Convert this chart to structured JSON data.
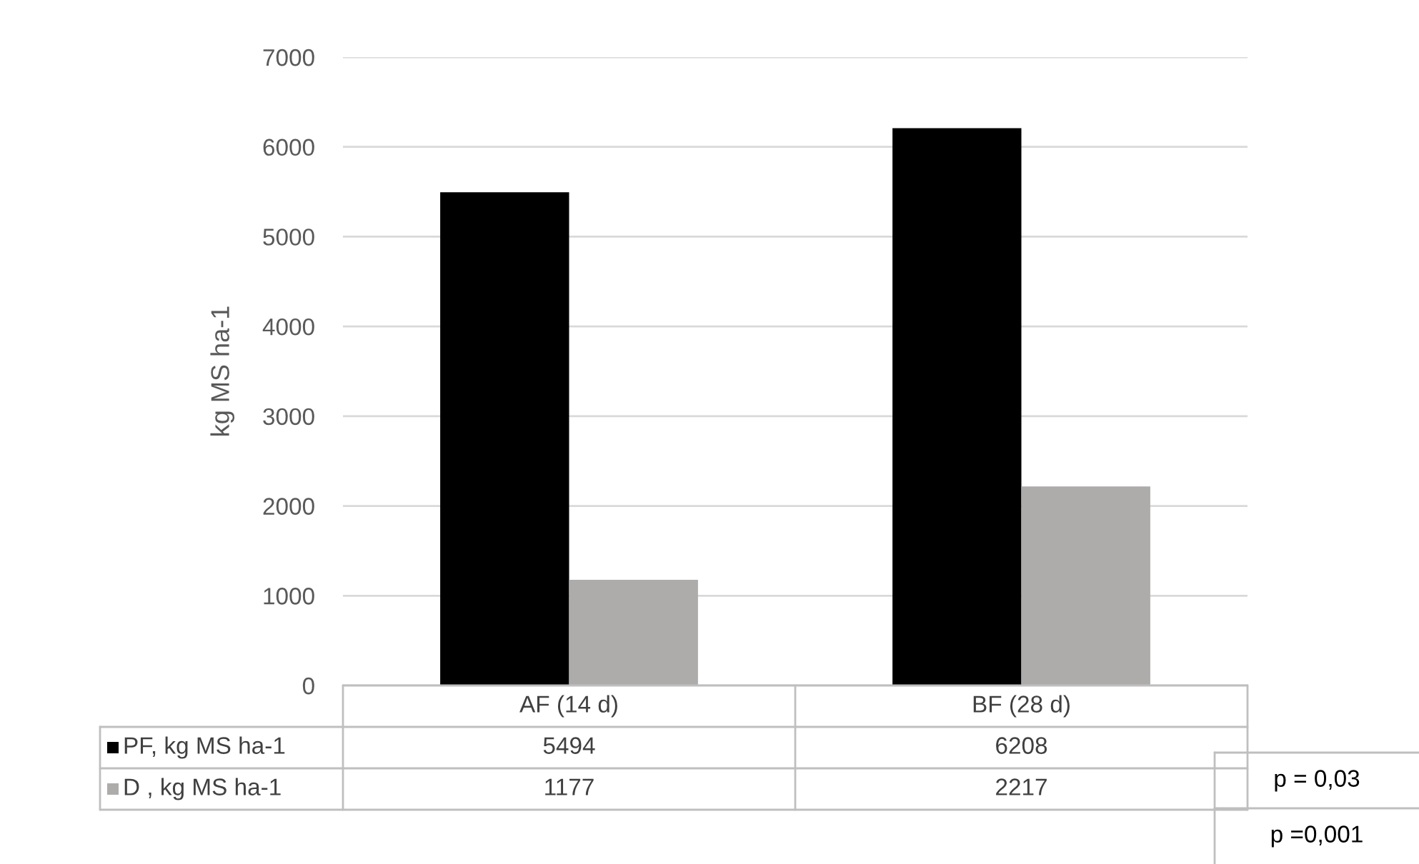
{
  "chart_data": {
    "type": "bar",
    "ylabel": "kg MS ha-1",
    "categories": [
      "AF (14 d)",
      "BF (28 d)"
    ],
    "series": [
      {
        "name": "PF, kg MS ha-1",
        "color": "#000000",
        "values": [
          5494,
          6208
        ]
      },
      {
        "name": "D , kg MS ha-1",
        "color": "#aeabab",
        "values": [
          1177,
          2217
        ]
      }
    ],
    "ylim": [
      0,
      7000
    ],
    "yticks": [
      0,
      1000,
      2000,
      3000,
      4000,
      5000,
      6000,
      7000
    ],
    "grid": "y",
    "legend": "bottom",
    "data_labels": true,
    "annotations": [
      "p = 0,03",
      "p =0,001"
    ]
  }
}
